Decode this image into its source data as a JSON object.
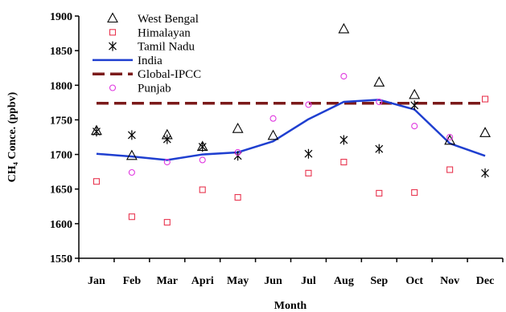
{
  "chart_data": {
    "type": "scatter",
    "title": "",
    "xlabel": "Month",
    "ylabel": "CH₄ Conce. (ppbv)",
    "categories": [
      "Jan",
      "Feb",
      "Mar",
      "Apri",
      "May",
      "Jun",
      "Jul",
      "Aug",
      "Sep",
      "Oct",
      "Nov",
      "Dec"
    ],
    "ylim": [
      1550,
      1900
    ],
    "yticks": [
      1550,
      1600,
      1650,
      1700,
      1750,
      1800,
      1850,
      1900
    ],
    "grid": false,
    "legend_position": "top-left",
    "series": [
      {
        "name": "West Bengal",
        "kind": "marker",
        "marker": "triangle",
        "color": "#000000",
        "values": [
          1734,
          1698,
          1728,
          1711,
          1737,
          1727,
          null,
          1881,
          1804,
          1786,
          1720,
          1731
        ]
      },
      {
        "name": "Himalayan",
        "kind": "marker",
        "marker": "square",
        "color": "#e8354f",
        "values": [
          1661,
          1610,
          1602,
          1649,
          1638,
          null,
          1673,
          1689,
          1644,
          1645,
          1678,
          1780
        ]
      },
      {
        "name": "Tamil Nadu",
        "kind": "marker",
        "marker": "asterisk",
        "color": "#000000",
        "values": [
          1733,
          1728,
          1722,
          1711,
          1698,
          null,
          1701,
          1721,
          1708,
          1771,
          null,
          1673
        ]
      },
      {
        "name": "India",
        "kind": "line",
        "color": "#1f3fd0",
        "values": [
          1701,
          1697,
          1692,
          1700,
          1703,
          1719,
          1751,
          1776,
          1779,
          1765,
          1716,
          1698
        ]
      },
      {
        "name": "Global-IPCC",
        "kind": "dashed-line",
        "color": "#7b1a1a",
        "values": [
          1774,
          1774,
          1774,
          1774,
          1774,
          1774,
          1774,
          1774,
          1774,
          1774,
          1774,
          1774
        ]
      },
      {
        "name": "Punjab",
        "kind": "marker",
        "marker": "circle",
        "color": "#e038e0",
        "values": [
          null,
          1674,
          1689,
          1692,
          1703,
          1752,
          1772,
          1813,
          1776,
          1741,
          1725,
          null
        ]
      }
    ]
  }
}
